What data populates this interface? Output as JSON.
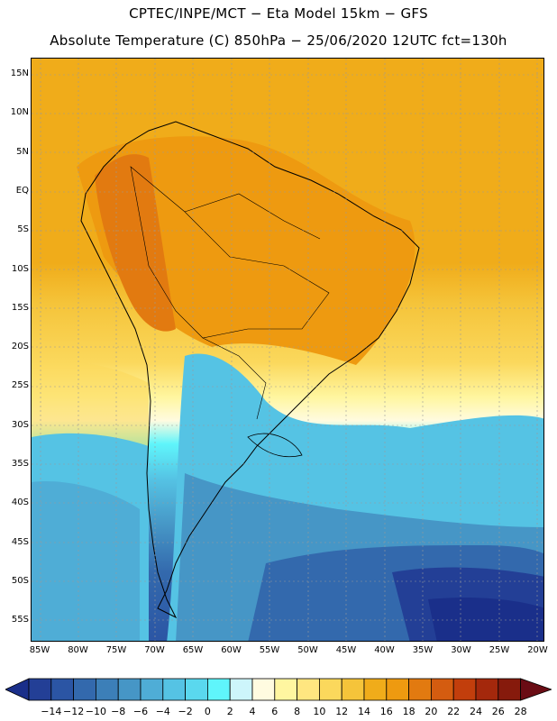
{
  "header": {
    "line1": "CPTEC/INPE/MCT −  Eta Model 15km − GFS",
    "line2": "Absolute Temperature (C) 850hPa − 25/06/2020 12UTC fct=130h"
  },
  "map": {
    "lat_labels": [
      "15N",
      "10N",
      "5N",
      "EQ",
      "5S",
      "10S",
      "15S",
      "20S",
      "25S",
      "30S",
      "35S",
      "40S",
      "45S",
      "50S",
      "55S"
    ],
    "lon_labels": [
      "85W",
      "80W",
      "75W",
      "70W",
      "65W",
      "60W",
      "55W",
      "50W",
      "45W",
      "40W",
      "35W",
      "30W",
      "25W",
      "20W"
    ],
    "region": "South America"
  },
  "colorbar": {
    "labels": [
      "−14",
      "−12",
      "−10",
      "−8",
      "−6",
      "−4",
      "−2",
      "0",
      "2",
      "4",
      "6",
      "8",
      "10",
      "12",
      "14",
      "16",
      "18",
      "20",
      "22",
      "24",
      "26",
      "28"
    ],
    "colors": [
      "#1a2f8a",
      "#233f96",
      "#2b55a4",
      "#3369ad",
      "#3c7fb8",
      "#4696c6",
      "#4fadd6",
      "#55c3e4",
      "#5ad8ee",
      "#5ff5fb",
      "#cdf5fb",
      "#fffbe0",
      "#fff6a0",
      "#ffe680",
      "#fbd85c",
      "#f5c43a",
      "#f0ac1a",
      "#ee9a10",
      "#e27a10",
      "#d45c10",
      "#c23e0c",
      "#a4280c",
      "#861a0c",
      "#6a0c14"
    ]
  }
}
